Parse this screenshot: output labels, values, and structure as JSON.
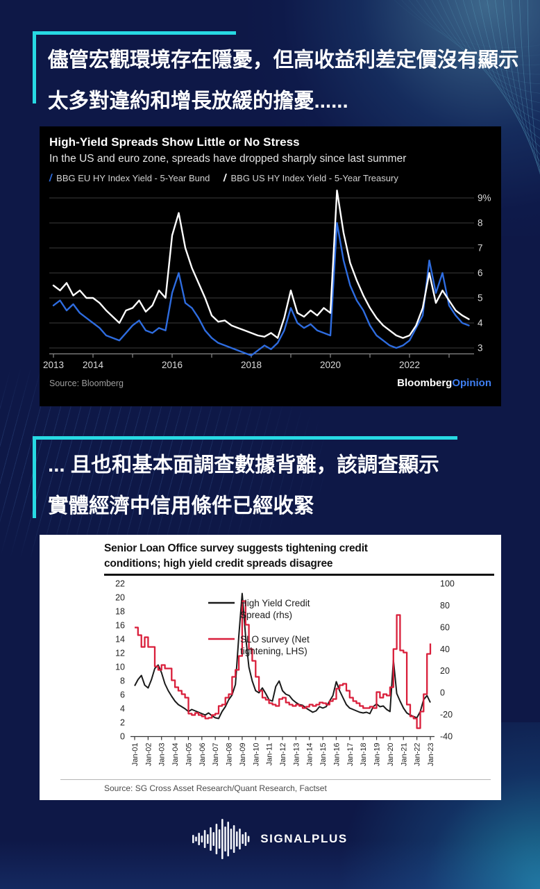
{
  "page": {
    "background_color": "#0e1847",
    "accent_color": "#27d9e3",
    "headline1": {
      "line1": "儘管宏觀環境存在隱憂，但高收益利差定價沒有顯示",
      "line2": "太多對違約和增長放緩的擔憂......"
    },
    "headline2": {
      "line1": "... 且也和基本面調查數據背離，該調查顯示",
      "line2": "實體經濟中信用條件已經收緊"
    }
  },
  "logo": {
    "text": "SIGNALPLUS",
    "icon": "waveform-bars"
  },
  "chart_data": [
    {
      "type": "line",
      "title": "High-Yield Spreads Show Little or No Stress",
      "subtitle": "In the US and euro zone, spreads have dropped sharply since last summer",
      "source": "Source: Bloomberg",
      "brand": {
        "bold": "Bloomberg",
        "accent": "Opinion"
      },
      "background": "#000000",
      "grid": true,
      "legend_position": "top",
      "ylabel": "",
      "xlabel": "",
      "ylim": [
        3,
        9
      ],
      "x_domain": [
        2013,
        2023.5
      ],
      "y_ticks": [
        {
          "v": 9,
          "label": "9%"
        },
        {
          "v": 8,
          "label": "8"
        },
        {
          "v": 7,
          "label": "7"
        },
        {
          "v": 6,
          "label": "6"
        },
        {
          "v": 5,
          "label": "5"
        },
        {
          "v": 4,
          "label": "4"
        },
        {
          "v": 3,
          "label": "3"
        }
      ],
      "x_ticks": [
        {
          "year": 2013,
          "label": "2013"
        },
        {
          "year": 2014,
          "label": "2014"
        },
        {
          "year": 2015,
          "label": ""
        },
        {
          "year": 2016,
          "label": "2016"
        },
        {
          "year": 2017,
          "label": ""
        },
        {
          "year": 2018,
          "label": "2018"
        },
        {
          "year": 2019,
          "label": ""
        },
        {
          "year": 2020,
          "label": "2020"
        },
        {
          "year": 2021,
          "label": ""
        },
        {
          "year": 2022,
          "label": "2022"
        },
        {
          "year": 2023,
          "label": ""
        }
      ],
      "series": [
        {
          "name": "BBG EU HY Index Yield - 5-Year Bund",
          "color": "#2e6cdf",
          "points_per_year": 6,
          "values": [
            4.7,
            4.9,
            4.5,
            4.75,
            4.4,
            4.2,
            4.0,
            3.8,
            3.5,
            3.4,
            3.3,
            3.6,
            3.9,
            4.1,
            3.7,
            3.6,
            3.8,
            3.7,
            5.2,
            6.0,
            4.8,
            4.6,
            4.2,
            3.7,
            3.4,
            3.2,
            3.1,
            3.0,
            2.9,
            2.8,
            2.7,
            2.9,
            3.1,
            2.95,
            3.2,
            3.7,
            4.6,
            4.0,
            3.8,
            3.95,
            3.7,
            3.6,
            3.5,
            8.0,
            6.5,
            5.5,
            4.9,
            4.5,
            3.9,
            3.5,
            3.3,
            3.1,
            3.0,
            3.1,
            3.3,
            3.8,
            4.3,
            6.5,
            5.2,
            6.0,
            4.7,
            4.3,
            4.0,
            3.9
          ]
        },
        {
          "name": "BBG US HY Index Yield - 5-Year Treasury",
          "color": "#ffffff",
          "points_per_year": 6,
          "values": [
            5.5,
            5.3,
            5.6,
            5.1,
            5.3,
            5.0,
            5.0,
            4.8,
            4.5,
            4.25,
            4.0,
            4.5,
            4.6,
            4.9,
            4.45,
            4.7,
            5.3,
            5.0,
            7.5,
            8.4,
            7.0,
            6.2,
            5.6,
            5.0,
            4.3,
            4.05,
            4.1,
            3.9,
            3.8,
            3.7,
            3.6,
            3.5,
            3.45,
            3.6,
            3.4,
            4.2,
            5.3,
            4.4,
            4.25,
            4.5,
            4.3,
            4.6,
            4.4,
            9.3,
            7.6,
            6.4,
            5.7,
            5.1,
            4.6,
            4.2,
            3.9,
            3.7,
            3.5,
            3.4,
            3.5,
            3.9,
            4.6,
            6.0,
            4.8,
            5.3,
            4.9,
            4.5,
            4.3,
            4.15
          ]
        }
      ]
    },
    {
      "type": "line",
      "title_lines": [
        "Senior Loan Office survey suggests tightening credit",
        "conditions; high yield credit spreads disagree"
      ],
      "source": "Source: SG Cross Asset Research/Quant Research, Factset",
      "background": "#ffffff",
      "grid": false,
      "axis_left_range": [
        0,
        22
      ],
      "axis_right_range": [
        -40,
        100
      ],
      "left_ticks": [
        22,
        20,
        18,
        16,
        14,
        12,
        10,
        8,
        6,
        4,
        2,
        0
      ],
      "right_ticks": [
        100,
        80,
        60,
        40,
        20,
        0,
        -20,
        -40
      ],
      "x_labels": [
        "Jan-01",
        "Jan-02",
        "Jan-03",
        "Jan-04",
        "Jan-05",
        "Jan-06",
        "Jan-07",
        "Jan-08",
        "Jan-09",
        "Jan-10",
        "Jan-11",
        "Jan-12",
        "Jan-13",
        "Jan-14",
        "Jan-15",
        "Jan-16",
        "Jan-17",
        "Jan-18",
        "Jan-19",
        "Jan-20",
        "Jan-21",
        "Jan-22",
        "Jan-23"
      ],
      "legend": [
        {
          "lines": [
            "High Yield Credit",
            "Spread (rhs)"
          ],
          "color": "#1a1a1a"
        },
        {
          "lines": [
            "SLO survey (Net",
            "tightening, LHS)"
          ],
          "color": "#d91e3a"
        }
      ],
      "note": "values sampled quarterly, read against the left axis scale 0-22",
      "series": [
        {
          "name": "High Yield Credit Spread (rhs)",
          "color": "#1a1a1a",
          "step": false,
          "values": [
            7.3,
            8.2,
            8.8,
            7.4,
            7.0,
            8.2,
            9.8,
            10.3,
            9.2,
            7.6,
            6.6,
            5.8,
            5.1,
            4.6,
            4.3,
            4.0,
            3.6,
            3.9,
            3.7,
            3.5,
            3.3,
            3.1,
            3.4,
            3.0,
            2.7,
            2.6,
            3.6,
            4.3,
            5.3,
            6.0,
            7.5,
            14.5,
            20.6,
            14.5,
            10.0,
            8.0,
            6.6,
            6.3,
            7.0,
            6.2,
            5.3,
            5.1,
            7.2,
            8.0,
            6.6,
            6.1,
            5.9,
            5.3,
            4.9,
            4.6,
            4.5,
            4.1,
            3.8,
            3.5,
            3.7,
            4.3,
            4.1,
            4.3,
            5.1,
            5.9,
            7.9,
            6.6,
            5.6,
            4.6,
            4.1,
            3.9,
            3.7,
            3.5,
            3.4,
            3.5,
            3.3,
            4.3,
            4.7,
            4.3,
            4.4,
            3.9,
            3.6,
            11.0,
            6.2,
            5.1,
            4.1,
            3.4,
            3.1,
            2.9,
            2.7,
            3.6,
            5.3,
            5.9,
            4.9
          ]
        },
        {
          "name": "SLO survey (Net tightening, LHS)",
          "color": "#d91e3a",
          "step": true,
          "values": [
            15.7,
            14.6,
            12.9,
            14.3,
            12.9,
            12.9,
            10.1,
            9.6,
            10.3,
            9.8,
            9.8,
            8.1,
            7.1,
            6.6,
            6.1,
            5.6,
            3.3,
            3.1,
            3.4,
            3.1,
            2.9,
            2.6,
            2.7,
            3.1,
            3.3,
            4.4,
            4.6,
            5.6,
            6.1,
            8.6,
            9.6,
            11.6,
            19.5,
            16.1,
            12.6,
            10.9,
            8.6,
            6.6,
            5.6,
            5.3,
            4.8,
            4.6,
            4.4,
            5.4,
            5.6,
            4.9,
            4.6,
            4.4,
            4.6,
            4.4,
            4.1,
            4.3,
            4.6,
            4.4,
            4.6,
            4.9,
            4.8,
            4.6,
            5.1,
            5.4,
            6.9,
            7.4,
            7.6,
            6.6,
            5.6,
            5.1,
            4.8,
            4.4,
            4.1,
            4.1,
            4.3,
            4.1,
            6.4,
            5.6,
            6.1,
            5.9,
            7.1,
            12.6,
            17.5,
            12.4,
            12.1,
            4.6,
            2.9,
            2.6,
            1.2,
            3.6,
            6.1,
            11.9,
            13.4
          ]
        }
      ]
    }
  ]
}
